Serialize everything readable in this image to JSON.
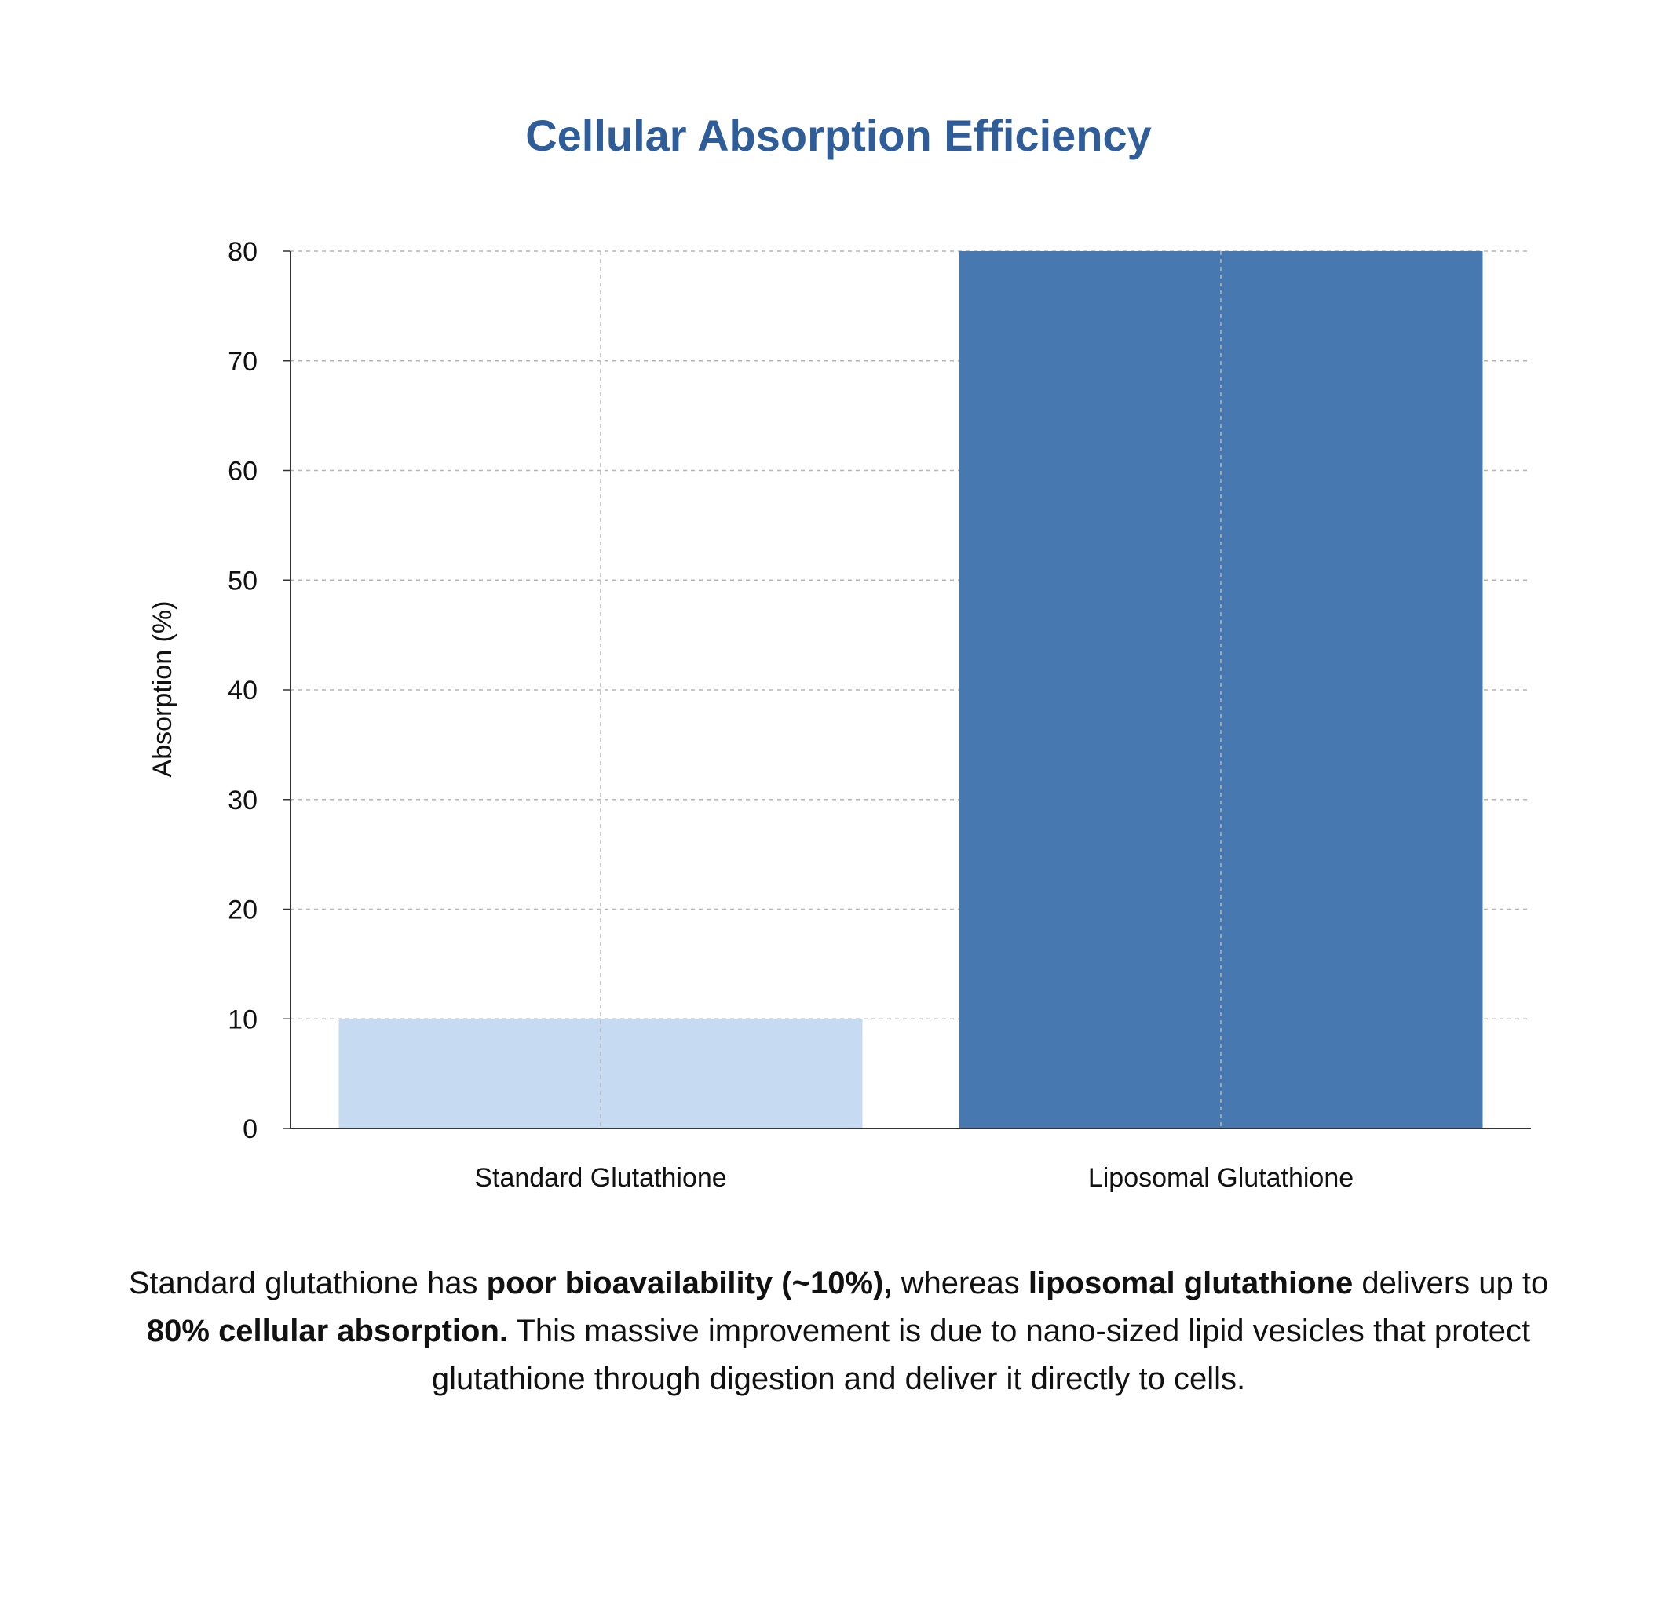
{
  "chart_data": {
    "type": "bar",
    "title": "Cellular Absorption Efficiency",
    "xlabel": "",
    "ylabel": "Absorption (%)",
    "categories": [
      "Standard Glutathione",
      "Liposomal Glutathione"
    ],
    "values": [
      10,
      80
    ],
    "colors": [
      "#c6dbf2",
      "#4779b0"
    ],
    "ylim": [
      0,
      80
    ],
    "yticks": [
      0,
      10,
      20,
      30,
      40,
      50,
      60,
      70,
      80
    ],
    "grid": true,
    "legend": false
  },
  "colors": {
    "title": "#2f5d99",
    "grid": "#b5b5b5",
    "axis": "#333333"
  },
  "description": {
    "p1": "Standard glutathione has ",
    "b1": "poor bioavailability (~10%),",
    "p2": " whereas ",
    "b2": "liposomal glutathione",
    "p3": " delivers up to ",
    "b3": "80% cellular absorption.",
    "p4": " This massive improvement is due to nano-sized lipid vesicles that protect glutathione through digestion and deliver it directly to cells."
  }
}
